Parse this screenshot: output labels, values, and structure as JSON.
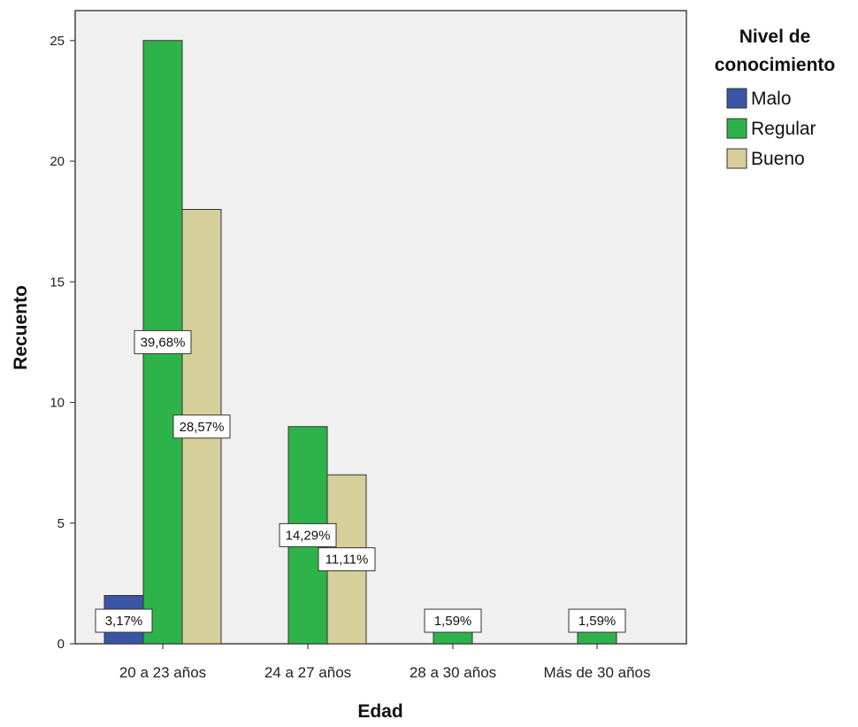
{
  "chart_data": {
    "type": "bar",
    "xlabel": "Edad",
    "ylabel": "Recuento",
    "ylim": [
      0,
      26
    ],
    "yticks": [
      0,
      5,
      10,
      15,
      20,
      25
    ],
    "categories": [
      "20 a 23 años",
      "24 a 27 años",
      "28 a 30 años",
      "Más de 30 años"
    ],
    "legend": {
      "title_lines": [
        "Nivel de",
        "conocimiento"
      ],
      "placement": "top-right"
    },
    "series": [
      {
        "name": "Malo",
        "color": "#3a55a4",
        "values": [
          2,
          0,
          0,
          0
        ],
        "labels": [
          "3,17%",
          "",
          "",
          ""
        ]
      },
      {
        "name": "Regular",
        "color": "#2eb34a",
        "values": [
          25,
          9,
          1,
          1
        ],
        "labels": [
          "39,68%",
          "14,29%",
          "1,59%",
          "1,59%"
        ]
      },
      {
        "name": "Bueno",
        "color": "#d6cf9a",
        "values": [
          18,
          7,
          0,
          0
        ],
        "labels": [
          "28,57%",
          "11,11%",
          "",
          ""
        ]
      }
    ],
    "grid": false,
    "plot_background": "#f0f0f0"
  }
}
